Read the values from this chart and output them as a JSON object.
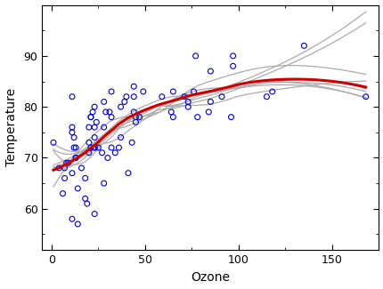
{
  "title": "",
  "xlabel": "Ozone",
  "ylabel": "Temperature",
  "xlim": [
    -5,
    175
  ],
  "ylim": [
    52,
    100
  ],
  "xticks": [
    0,
    50,
    100,
    150
  ],
  "yticks": [
    60,
    70,
    80,
    90
  ],
  "scatter_x": [
    41,
    36,
    12,
    18,
    28,
    23,
    19,
    8,
    7,
    16,
    11,
    14,
    18,
    14,
    34,
    6,
    30,
    11,
    1,
    11,
    4,
    32,
    23,
    45,
    115,
    37,
    29,
    71,
    39,
    23,
    21,
    37,
    20,
    12,
    13,
    135,
    49,
    32,
    64,
    40,
    77,
    97,
    97,
    85,
    11,
    44,
    28,
    65,
    22,
    59,
    23,
    31,
    44,
    21,
    9,
    45,
    168,
    73,
    76,
    118,
    84,
    85,
    96,
    78,
    73,
    91,
    47,
    32,
    20,
    23,
    21,
    24,
    44,
    28,
    65,
    43,
    25,
    27,
    7,
    13,
    11,
    23,
    20,
    13
  ],
  "scatter_y": [
    67,
    72,
    74,
    62,
    65,
    59,
    61,
    69,
    66,
    68,
    58,
    64,
    66,
    57,
    71,
    63,
    70,
    75,
    73,
    76,
    68,
    72,
    74,
    77,
    82,
    80,
    79,
    82,
    81,
    76,
    78,
    74,
    71,
    72,
    72,
    92,
    83,
    83,
    79,
    82,
    90,
    90,
    88,
    87,
    82,
    84,
    81,
    83,
    79,
    82,
    80,
    79,
    82,
    78,
    69,
    78,
    82,
    81,
    83,
    83,
    79,
    81,
    78,
    78,
    80,
    82,
    78,
    78,
    73,
    72,
    72,
    77,
    79,
    76,
    78,
    73,
    72,
    71,
    68,
    70,
    67,
    72,
    76,
    70
  ],
  "point_color": "#0000CC",
  "point_size": 18,
  "gray_curve_color": "#AAAAAA",
  "red_curve_color": "#CC0000",
  "background_color": "#FFFFFF",
  "fig_bg_color": "#FFFFFF"
}
